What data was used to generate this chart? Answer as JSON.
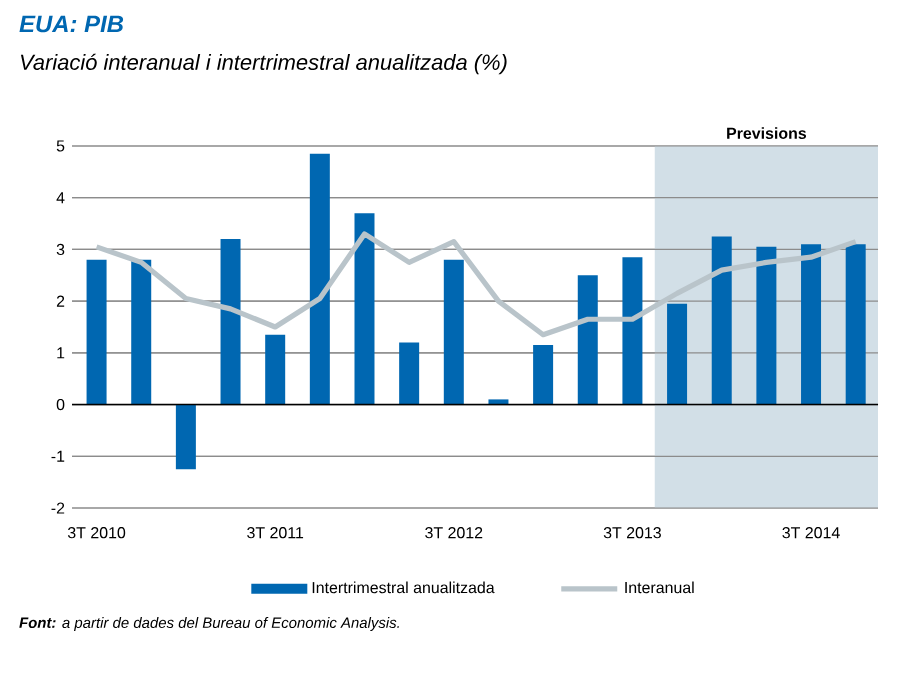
{
  "chart_data": {
    "type": "bar",
    "title": "EUA: PIB",
    "subtitle": "Variació interanual i intertrimestral anualitzada (%)",
    "categories": [
      "3T 2010",
      null,
      null,
      null,
      "3T 2011",
      null,
      null,
      null,
      "3T 2012",
      null,
      null,
      null,
      "3T 2013",
      null,
      null,
      null,
      "3T 2014",
      null
    ],
    "series": [
      {
        "name": "Intertrimestral anualitzada",
        "color": "#0067b1",
        "values": [
          2.8,
          2.8,
          -1.25,
          3.2,
          1.35,
          4.85,
          3.7,
          1.2,
          2.8,
          0.1,
          1.15,
          2.5,
          2.85,
          1.95,
          3.25,
          3.05,
          3.1,
          3.1
        ]
      },
      {
        "name": "Interanual",
        "type": "line",
        "color": "#b9c4ca",
        "values": [
          3.05,
          2.75,
          2.05,
          1.85,
          1.5,
          2.05,
          3.3,
          2.75,
          3.15,
          2.0,
          1.35,
          1.65,
          1.65,
          2.15,
          2.6,
          2.75,
          2.85,
          3.15
        ]
      }
    ],
    "ylim": [
      -2,
      5
    ],
    "yticks": [
      -2,
      -1,
      0,
      1,
      2,
      3,
      4,
      5
    ],
    "grid": "y",
    "legend": "bottom",
    "annotations": [
      "Previsions",
      "**Font:** a partir de dades del Bureau of Economic Analysis."
    ]
  }
}
